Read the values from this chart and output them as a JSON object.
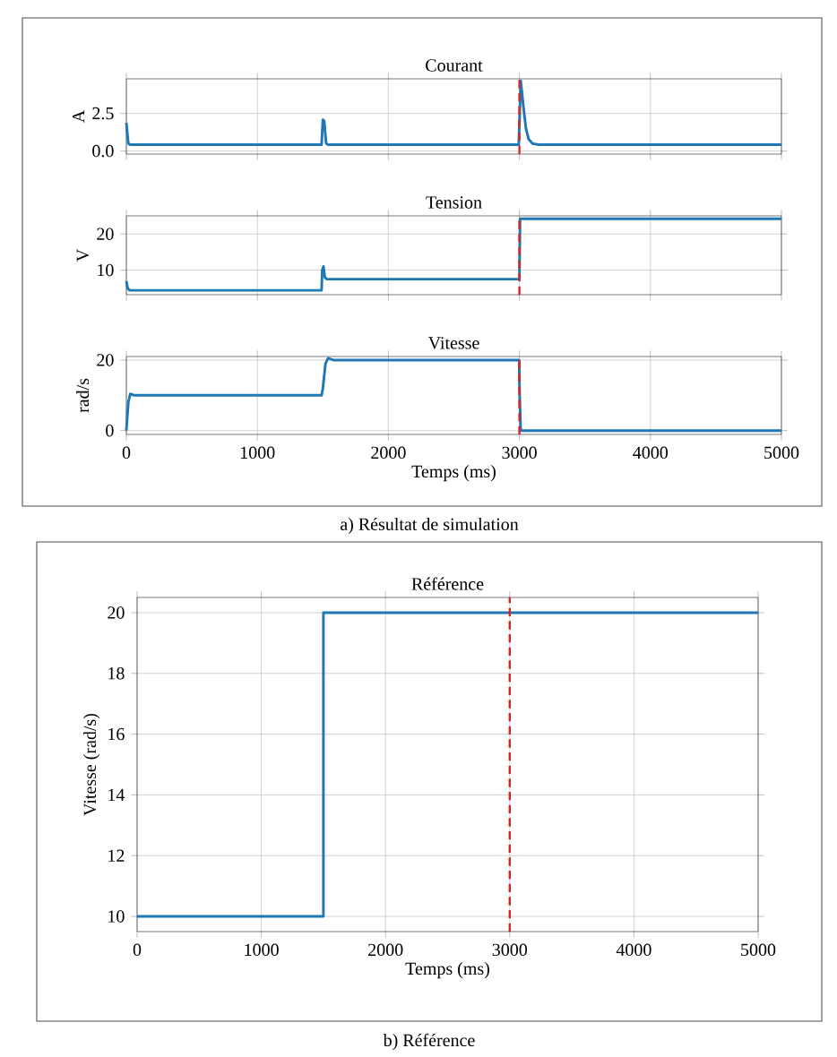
{
  "chart_data": [
    {
      "type": "line",
      "title": "Courant",
      "ylabel": "A",
      "xlim": [
        0,
        5000
      ],
      "ylim": [
        -0.2,
        4.8
      ],
      "xticks": [
        0,
        1000,
        2000,
        3000,
        4000,
        5000
      ],
      "yticks": [
        {
          "value": 0,
          "label": "0.0"
        },
        2.5
      ],
      "tick_labels": "y",
      "grid": true,
      "series": [
        {
          "color": "#1f77b4",
          "x": [
            0,
            15,
            30,
            1490,
            1500,
            1510,
            1525,
            1540,
            2995,
            3010,
            3030,
            3050,
            3070,
            3100,
            3150,
            5000
          ],
          "values": [
            1.87,
            0.5,
            0.42,
            0.42,
            2.08,
            2.0,
            0.5,
            0.42,
            0.42,
            4.67,
            3.0,
            1.5,
            0.8,
            0.5,
            0.42,
            0.42
          ]
        }
      ],
      "ref_lines": [
        {
          "axis": "x",
          "value": 3000,
          "color": "#d62728",
          "line_style": "dashed"
        }
      ]
    },
    {
      "type": "line",
      "title": "Tension",
      "ylabel": "V",
      "xlim": [
        0,
        5000
      ],
      "ylim": [
        3.2,
        25
      ],
      "xticks": [
        0,
        1000,
        2000,
        3000,
        4000,
        5000
      ],
      "yticks": [
        10,
        20
      ],
      "tick_labels": "y",
      "grid": true,
      "series": [
        {
          "color": "#1f77b4",
          "x": [
            0,
            10,
            25,
            1490,
            1495,
            1505,
            1515,
            1530,
            3000,
            3005,
            5000
          ],
          "values": [
            7,
            5,
            4.4,
            4.4,
            10,
            11,
            8,
            7.5,
            7.5,
            24.2,
            24.2
          ]
        }
      ],
      "ref_lines": [
        {
          "axis": "x",
          "value": 3000,
          "color": "#d62728",
          "line_style": "dashed"
        }
      ]
    },
    {
      "type": "line",
      "title": "Vitesse",
      "xlabel": "Temps (ms)",
      "ylabel": "rad/s",
      "xlim": [
        0,
        5000
      ],
      "ylim": [
        -1.1,
        21
      ],
      "xticks": [
        0,
        1000,
        2000,
        3000,
        4000,
        5000
      ],
      "yticks": [
        0,
        20
      ],
      "grid": true,
      "series": [
        {
          "color": "#1f77b4",
          "x": [
            0,
            15,
            30,
            60,
            1490,
            1500,
            1520,
            1540,
            1580,
            2998,
            3002,
            3010,
            5000
          ],
          "values": [
            0,
            8,
            10.4,
            10,
            10,
            12,
            19,
            20.5,
            20,
            20,
            10,
            0,
            0
          ]
        }
      ],
      "ref_lines": [
        {
          "axis": "x",
          "value": 3000,
          "color": "#d62728",
          "line_style": "dashed"
        }
      ],
      "annotations": [
        "a) Résultat de simulation"
      ]
    },
    {
      "type": "line",
      "title": "Référence",
      "xlabel": "Temps (ms)",
      "ylabel": "Vitesse (rad/s)",
      "xlim": [
        0,
        5000
      ],
      "ylim": [
        9.5,
        20.5
      ],
      "xticks": [
        0,
        1000,
        2000,
        3000,
        4000,
        5000
      ],
      "yticks": [
        10,
        12,
        14,
        16,
        18,
        20
      ],
      "grid": true,
      "series": [
        {
          "color": "#1f77b4",
          "x": [
            0,
            1500,
            1500,
            5000
          ],
          "values": [
            10,
            10,
            20,
            20
          ]
        }
      ],
      "ref_lines": [
        {
          "axis": "x",
          "value": 3000,
          "color": "#d62728",
          "line_style": "dashed"
        }
      ],
      "annotations": [
        "b) Référence"
      ]
    }
  ]
}
